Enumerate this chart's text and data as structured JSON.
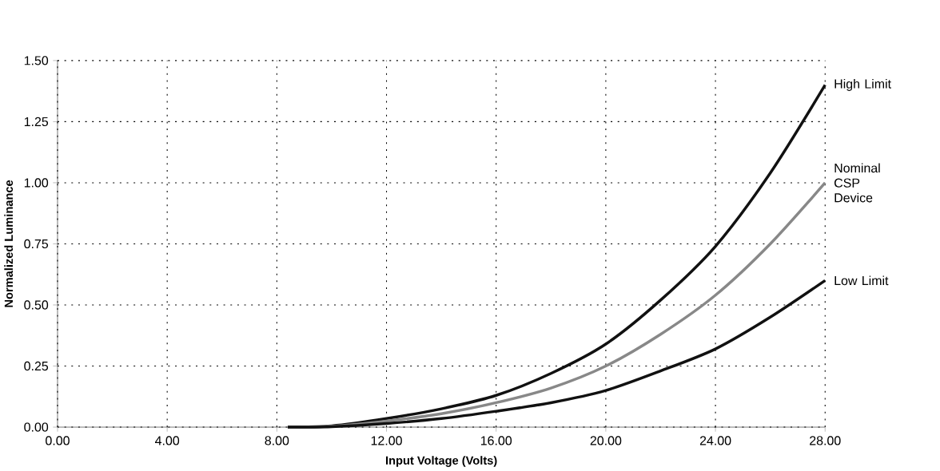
{
  "chart_data": {
    "type": "line",
    "xlabel": "Input Voltage (Volts)",
    "ylabel": "Normalized Luminance",
    "x": [
      8.4,
      10,
      12,
      14,
      16,
      18,
      20,
      22,
      24,
      26,
      28
    ],
    "series": [
      {
        "name": "High Limit",
        "color": "#111111",
        "values": [
          0,
          0.005,
          0.035,
          0.075,
          0.13,
          0.22,
          0.34,
          0.52,
          0.74,
          1.04,
          1.4
        ]
      },
      {
        "name": "Nominal CSP Device",
        "color": "#888888",
        "values": [
          0,
          0.004,
          0.025,
          0.055,
          0.1,
          0.16,
          0.25,
          0.38,
          0.54,
          0.75,
          1.0
        ]
      },
      {
        "name": "Low Limit",
        "color": "#111111",
        "values": [
          0,
          0.002,
          0.015,
          0.035,
          0.065,
          0.1,
          0.15,
          0.23,
          0.32,
          0.45,
          0.6
        ]
      }
    ],
    "xlim": [
      0,
      28
    ],
    "ylim": [
      0,
      1.5
    ],
    "xticks": [
      {
        "value": 0,
        "label": "0.00"
      },
      {
        "value": 4,
        "label": "4.00"
      },
      {
        "value": 8,
        "label": "8.00"
      },
      {
        "value": 12,
        "label": "12.00"
      },
      {
        "value": 16,
        "label": "16.00"
      },
      {
        "value": 20,
        "label": "20.00"
      },
      {
        "value": 24,
        "label": "24.00"
      },
      {
        "value": 28,
        "label": "28.00"
      }
    ],
    "yticks": [
      {
        "value": 0,
        "label": "0.00"
      },
      {
        "value": 0.25,
        "label": "0.25"
      },
      {
        "value": 0.5,
        "label": "0.50"
      },
      {
        "value": 0.75,
        "label": "0.75"
      },
      {
        "value": 1.0,
        "label": "1.00"
      },
      {
        "value": 1.25,
        "label": "1.25"
      },
      {
        "value": 1.5,
        "label": "1.50"
      }
    ],
    "grid": true,
    "legend": false,
    "marker": "none",
    "line_style": "solid"
  }
}
